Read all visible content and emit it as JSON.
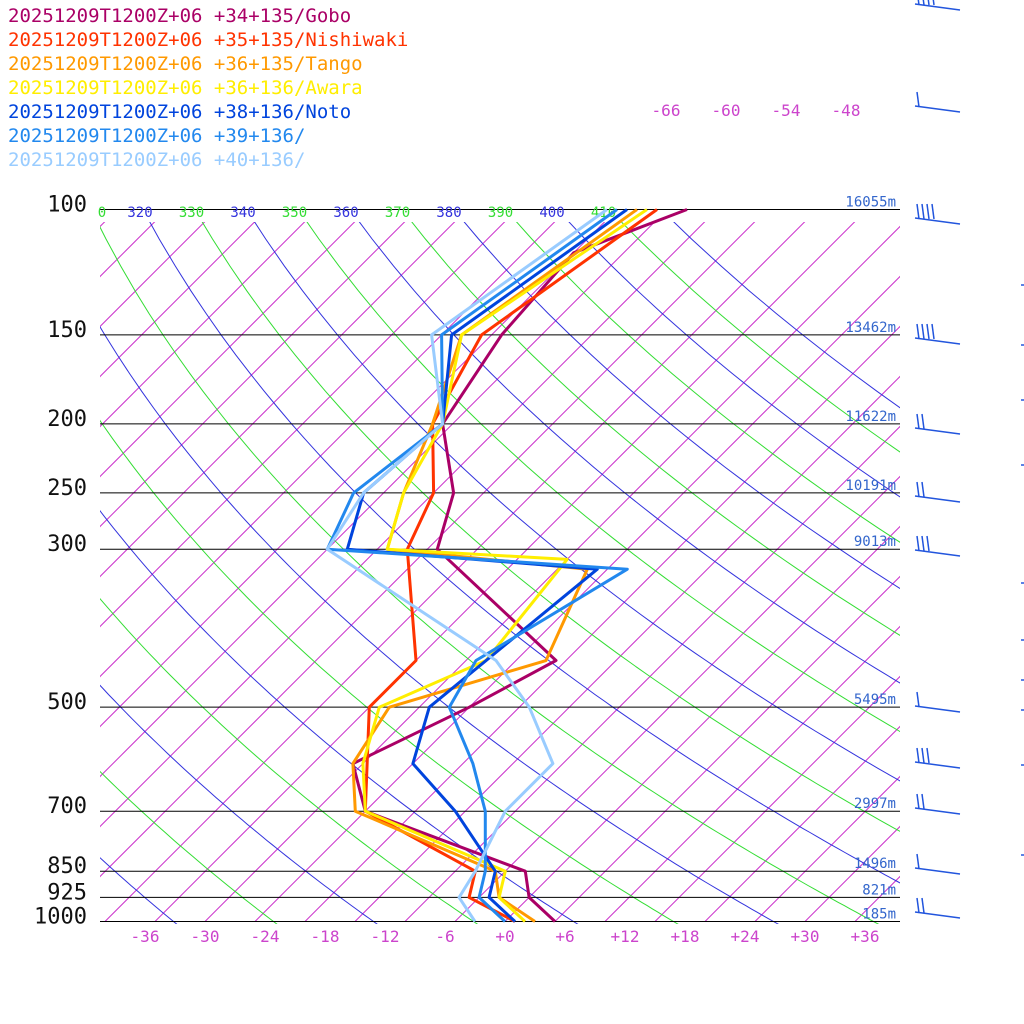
{
  "chart_data": {
    "type": "line",
    "title": "",
    "xlabel": "",
    "ylabel": "",
    "pressure_levels": [
      100,
      150,
      200,
      250,
      300,
      500,
      700,
      850,
      925,
      1000
    ],
    "pressure_labels": [
      "100",
      "150",
      "200",
      "250",
      "300",
      "500",
      "700",
      "850",
      "925",
      "1000"
    ],
    "height_labels": [
      "16055m",
      "13462m",
      "11622m",
      "10191m",
      "9013m",
      "5495m",
      "2997m",
      "1496m",
      "821m",
      "185m"
    ],
    "temperature_ticks": [
      "-36",
      "-30",
      "-24",
      "-18",
      "-12",
      "-6",
      "+0",
      "+6",
      "+12",
      "+18",
      "+24",
      "+30",
      "+36"
    ],
    "isotherm_labels_top": [
      "-66",
      "-60",
      "-54",
      "-48"
    ],
    "theta_labels": [
      {
        "text": "0",
        "color": "#33dd33"
      },
      {
        "text": "320",
        "color": "#3333dd"
      },
      {
        "text": "330",
        "color": "#33dd33"
      },
      {
        "text": "340",
        "color": "#3333dd"
      },
      {
        "text": "350",
        "color": "#33dd33"
      },
      {
        "text": "360",
        "color": "#3333dd"
      },
      {
        "text": "370",
        "color": "#33dd33"
      },
      {
        "text": "380",
        "color": "#3333dd"
      },
      {
        "text": "390",
        "color": "#33dd33"
      },
      {
        "text": "400",
        "color": "#3333dd"
      },
      {
        "text": "410",
        "color": "#33dd33"
      }
    ],
    "series": [
      {
        "name": "20251209T1200Z+06 +34+135/Gobo",
        "color": "#aa0066",
        "values": [
          [
            -53,
            100
          ],
          [
            -60,
            115
          ],
          [
            -59,
            150
          ],
          [
            -56,
            200
          ],
          [
            -48,
            250
          ],
          [
            -44,
            300
          ],
          [
            -21,
            430
          ],
          [
            -25,
            500
          ],
          [
            -31,
            600
          ],
          [
            -25,
            700
          ],
          [
            -3,
            850
          ],
          [
            0,
            925
          ],
          [
            5,
            1000
          ]
        ]
      },
      {
        "name": "20251209T1200Z+06 +35+135/Nishiwaki",
        "color": "#ff3300",
        "values": [
          [
            -56,
            100
          ],
          [
            -61,
            150
          ],
          [
            -57,
            200
          ],
          [
            -50,
            250
          ],
          [
            -47,
            300
          ],
          [
            -35,
            430
          ],
          [
            -35,
            500
          ],
          [
            -25,
            700
          ],
          [
            -8,
            850
          ],
          [
            -6,
            925
          ],
          [
            1,
            1000
          ]
        ]
      },
      {
        "name": "20251209T1200Z+06 +36+135/Tango",
        "color": "#ff9900",
        "values": [
          [
            -58,
            100
          ],
          [
            -63,
            150
          ],
          [
            -57,
            200
          ],
          [
            -53,
            250
          ],
          [
            -49,
            300
          ],
          [
            -27,
            320
          ],
          [
            -22,
            430
          ],
          [
            -33,
            500
          ],
          [
            -31,
            600
          ],
          [
            -26,
            700
          ],
          [
            -6,
            850
          ],
          [
            -3,
            925
          ],
          [
            3,
            1000
          ]
        ]
      },
      {
        "name": "20251209T1200Z+06 +36+136/Awara",
        "color": "#ffee00",
        "values": [
          [
            -57,
            100
          ],
          [
            -63,
            150
          ],
          [
            -56,
            200
          ],
          [
            -53,
            250
          ],
          [
            -49,
            300
          ],
          [
            -30,
            310
          ],
          [
            -28,
            430
          ],
          [
            -34,
            500
          ],
          [
            -30,
            600
          ],
          [
            -25,
            700
          ],
          [
            -5,
            850
          ],
          [
            -3,
            925
          ],
          [
            2,
            1000
          ]
        ]
      },
      {
        "name": "20251209T1200Z+06 +38+136/Noto",
        "color": "#0044dd",
        "values": [
          [
            -59,
            100
          ],
          [
            -64,
            150
          ],
          [
            -56,
            200
          ],
          [
            -57,
            250
          ],
          [
            -53,
            300
          ],
          [
            -26,
            320
          ],
          [
            -29,
            500
          ],
          [
            -25,
            600
          ],
          [
            -16,
            700
          ],
          [
            -6,
            850
          ],
          [
            -4,
            925
          ],
          [
            1,
            1000
          ]
        ]
      },
      {
        "name": "20251209T1200Z+06 +39+136/",
        "color": "#2288ee",
        "values": [
          [
            -60,
            100
          ],
          [
            -65,
            150
          ],
          [
            -56,
            200
          ],
          [
            -58,
            250
          ],
          [
            -55,
            300
          ],
          [
            -23,
            320
          ],
          [
            -29,
            430
          ],
          [
            -27,
            500
          ],
          [
            -19,
            600
          ],
          [
            -13,
            700
          ],
          [
            -7,
            850
          ],
          [
            -5,
            925
          ],
          [
            0,
            1000
          ]
        ]
      },
      {
        "name": "20251209T1200Z+06 +40+136/",
        "color": "#99ccff",
        "values": [
          [
            -61,
            100
          ],
          [
            -66,
            150
          ],
          [
            -56,
            200
          ],
          [
            -57,
            250
          ],
          [
            -55,
            300
          ],
          [
            -27,
            430
          ],
          [
            -19,
            500
          ],
          [
            -11,
            600
          ],
          [
            -11,
            700
          ],
          [
            -8,
            850
          ],
          [
            -7,
            925
          ],
          [
            -3,
            1000
          ]
        ]
      }
    ],
    "grid": true,
    "legend_placement": "top-left"
  }
}
